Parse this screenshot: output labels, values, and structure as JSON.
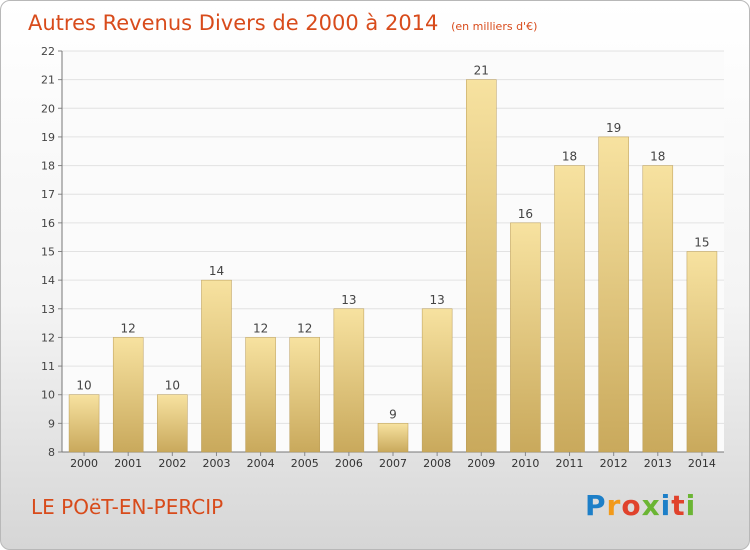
{
  "chart_data": {
    "type": "bar",
    "title": "Autres Revenus Divers de 2000 à 2014",
    "subtitle": "(en milliers d'€)",
    "categories": [
      "2000",
      "2001",
      "2002",
      "2003",
      "2004",
      "2005",
      "2006",
      "2007",
      "2008",
      "2009",
      "2010",
      "2011",
      "2012",
      "2013",
      "2014"
    ],
    "values": [
      10,
      12,
      10,
      14,
      12,
      12,
      13,
      9,
      13,
      21,
      16,
      18,
      19,
      18,
      15
    ],
    "ylim": [
      8,
      22
    ],
    "yticks": [
      8,
      9,
      10,
      11,
      12,
      13,
      14,
      15,
      16,
      17,
      18,
      19,
      20,
      21,
      22
    ],
    "grid": true,
    "colors": {
      "bar_light": "#f7e2a0",
      "bar_dark": "#c9a95c",
      "title": "#d84b1b"
    }
  },
  "footer": {
    "commune": "LE POëT-EN-PERCIP",
    "logo_letters": [
      "P",
      "r",
      "o",
      "x",
      "i",
      "t",
      "i"
    ]
  }
}
